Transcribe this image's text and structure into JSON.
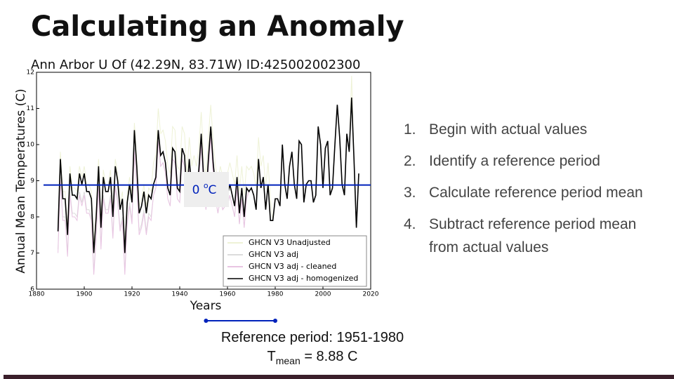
{
  "title": "Calculating an Anomaly",
  "chart_data": {
    "type": "line",
    "title": "Ann Arbor U Of (42.29N, 83.71W) ID:425002002300",
    "x_label": "Years",
    "y_label": "Annual Mean Temperatures (C)",
    "xlim": [
      1880,
      2020
    ],
    "xticks": [
      1880,
      1900,
      1920,
      1940,
      1960,
      1980,
      2000,
      2020
    ],
    "ylim": [
      6,
      12
    ],
    "yticks": [
      6,
      7,
      8,
      9,
      10,
      11,
      12
    ],
    "x": [
      1889,
      1890,
      1891,
      1892,
      1893,
      1894,
      1895,
      1896,
      1897,
      1898,
      1899,
      1900,
      1901,
      1902,
      1903,
      1904,
      1905,
      1906,
      1907,
      1908,
      1909,
      1910,
      1911,
      1912,
      1913,
      1914,
      1915,
      1916,
      1917,
      1918,
      1919,
      1920,
      1921,
      1922,
      1923,
      1924,
      1925,
      1926,
      1927,
      1928,
      1929,
      1930,
      1931,
      1932,
      1933,
      1934,
      1935,
      1936,
      1937,
      1938,
      1939,
      1940,
      1941,
      1942,
      1943,
      1944,
      1945,
      1946,
      1947,
      1948,
      1949,
      1950,
      1951,
      1952,
      1953,
      1954,
      1955,
      1956,
      1957,
      1958,
      1959,
      1960,
      1961,
      1962,
      1963,
      1964,
      1965,
      1966,
      1967,
      1968,
      1969,
      1970,
      1971,
      1972,
      1973,
      1974,
      1975,
      1976,
      1977,
      1978,
      1979,
      1980,
      1981,
      1982,
      1983,
      1984,
      1985,
      1986,
      1987,
      1988,
      1989,
      1990,
      1991,
      1992,
      1993,
      1994,
      1995,
      1996,
      1997,
      1998,
      1999,
      2000,
      2001,
      2002,
      2003,
      2004,
      2005,
      2006,
      2007,
      2008,
      2009,
      2010,
      2011,
      2012,
      2013,
      2014,
      2015
    ],
    "series": [
      {
        "name": "GHCN V3 Unadjusted",
        "color": "#eef2d6",
        "width": 1,
        "values": [
          7.8,
          9.8,
          8.7,
          8.7,
          7.7,
          9.4,
          8.8,
          8.8,
          8.7,
          9.4,
          9.1,
          9.4,
          8.9,
          8.9,
          8.7,
          7.2,
          8.2,
          9.6,
          7.9,
          9.3,
          8.9,
          8.9,
          9.3,
          8.2,
          9.6,
          9.2,
          8.4,
          8.7,
          7.2,
          8.6,
          9.1,
          8.6,
          10.6,
          9.6,
          8.3,
          8.5,
          8.9,
          8.3,
          8.8,
          8.7,
          9.5,
          9.7,
          11.0,
          10.3,
          10.4,
          10.1,
          9.4,
          9.2,
          10.5,
          10.4,
          9.4,
          9.3,
          10.5,
          10.3,
          9.2,
          10.2,
          9.4,
          9.7,
          9.4,
          9.9,
          10.9,
          9.7,
          9.1,
          10.2,
          11.1,
          10.1,
          9.4,
          9.0,
          9.4,
          9.1,
          9.2,
          9.2,
          9.5,
          9.2,
          8.9,
          9.7,
          8.7,
          9.4,
          8.6,
          9.4,
          9.3,
          9.4,
          9.2,
          8.8,
          10.2,
          9.4,
          9.7,
          8.8,
          9.5,
          8.5,
          7.9,
          8.5,
          8.5,
          8.3,
          10.0,
          8.9,
          8.5,
          9.4,
          9.8,
          8.9,
          8.5,
          10.1,
          10.0,
          8.4,
          8.9,
          9.0,
          9.0,
          8.4,
          8.6,
          10.5,
          10.0,
          8.8,
          9.9,
          10.1,
          8.6,
          8.8,
          10.0,
          11.1,
          10.2,
          8.9,
          8.6,
          10.3,
          9.8,
          11.9,
          9.6,
          7.7,
          9.2
        ]
      },
      {
        "name": "GHCN V3 adj",
        "color": "#dcdcdc",
        "width": 1,
        "values": [
          7.1,
          9.1,
          8.0,
          8.0,
          7.0,
          8.7,
          8.1,
          8.1,
          8.0,
          8.7,
          8.4,
          8.7,
          8.2,
          8.2,
          8.0,
          6.5,
          7.5,
          8.9,
          7.2,
          8.6,
          8.2,
          8.2,
          8.6,
          7.5,
          8.9,
          8.5,
          7.7,
          8.0,
          6.5,
          7.9,
          8.4,
          7.9,
          9.9,
          8.9,
          7.6,
          7.8,
          8.2,
          7.6,
          8.1,
          8.0,
          8.6,
          8.8,
          10.1,
          9.4,
          9.5,
          9.2,
          8.5,
          8.3,
          9.6,
          9.5,
          8.5,
          8.4,
          9.6,
          9.4,
          8.3,
          9.3,
          8.5,
          8.8,
          8.5,
          9.0,
          10.0,
          8.8,
          8.2,
          9.3,
          10.2,
          9.2,
          8.5,
          8.1,
          8.5,
          8.2,
          8.3,
          8.3,
          8.6,
          8.3,
          8.0,
          8.8,
          7.8,
          8.5,
          7.7,
          8.5,
          8.7,
          8.8,
          8.6,
          8.2,
          9.6,
          8.8,
          9.1,
          8.2,
          8.9,
          7.9,
          7.9,
          8.5,
          8.5,
          8.3,
          10.0,
          8.9,
          8.5,
          9.4,
          9.8,
          8.9,
          8.5,
          10.1,
          10.0,
          8.4,
          8.9,
          9.0,
          9.0,
          8.4,
          8.6,
          10.5,
          10.0,
          8.8,
          9.9,
          10.1,
          8.6,
          8.8,
          10.0,
          11.1,
          10.2,
          8.9,
          8.6,
          10.3,
          9.8,
          11.3,
          9.6,
          7.7,
          9.2
        ]
      },
      {
        "name": "GHCN V3 adj - cleaned",
        "color": "#e8c4e2",
        "width": 1,
        "values": [
          7.0,
          9.0,
          7.9,
          7.9,
          6.9,
          8.6,
          8.0,
          8.0,
          7.9,
          8.6,
          8.3,
          8.6,
          8.1,
          8.1,
          7.9,
          6.4,
          7.4,
          8.8,
          7.1,
          8.5,
          8.1,
          8.1,
          8.5,
          7.4,
          8.8,
          8.4,
          7.6,
          7.9,
          6.4,
          7.8,
          8.3,
          7.8,
          9.8,
          8.8,
          7.5,
          7.7,
          8.1,
          7.5,
          8.0,
          7.9,
          8.6,
          8.8,
          10.1,
          9.4,
          9.5,
          9.2,
          8.5,
          8.3,
          9.6,
          9.5,
          8.5,
          8.4,
          9.6,
          9.4,
          8.3,
          9.3,
          8.5,
          8.8,
          8.5,
          9.0,
          10.0,
          8.8,
          8.2,
          9.3,
          10.2,
          9.2,
          8.5,
          8.1,
          8.5,
          8.2,
          8.3,
          8.3,
          8.6,
          8.3,
          8.0,
          8.8,
          7.8,
          8.5,
          7.7,
          8.5,
          8.7,
          8.8,
          8.6,
          8.2,
          9.6,
          8.8,
          9.1,
          8.2,
          8.9,
          7.9,
          7.9,
          8.5,
          8.5,
          8.3,
          10.0,
          8.9,
          8.5,
          9.4,
          9.8,
          8.9,
          8.5,
          10.1,
          10.0,
          8.4,
          8.9,
          9.0,
          9.0,
          8.4,
          8.6,
          10.5,
          10.0,
          8.8,
          9.9,
          10.1,
          8.6,
          8.8,
          10.0,
          11.1,
          10.2,
          8.9,
          8.6,
          10.3,
          9.8,
          11.3,
          9.6,
          7.7,
          9.2
        ]
      },
      {
        "name": "GHCN V3 adj - homogenized",
        "color": "#000000",
        "width": 1.6,
        "values": [
          7.6,
          9.6,
          8.5,
          8.5,
          7.5,
          9.2,
          8.6,
          8.6,
          8.5,
          9.2,
          8.9,
          9.2,
          8.7,
          8.7,
          8.5,
          7.0,
          8.0,
          9.4,
          7.7,
          9.1,
          8.7,
          8.7,
          9.1,
          8.0,
          9.4,
          9.0,
          8.2,
          8.5,
          7.0,
          8.4,
          8.9,
          8.4,
          10.4,
          9.4,
          8.1,
          8.3,
          8.7,
          8.1,
          8.6,
          8.5,
          8.9,
          9.1,
          10.4,
          9.7,
          9.8,
          9.5,
          8.8,
          8.6,
          9.9,
          9.8,
          8.8,
          8.7,
          9.9,
          9.7,
          8.6,
          9.6,
          8.8,
          9.1,
          8.8,
          9.3,
          10.3,
          9.1,
          8.5,
          9.6,
          10.5,
          9.5,
          8.8,
          8.4,
          8.8,
          8.5,
          8.6,
          8.6,
          8.9,
          8.6,
          8.3,
          9.1,
          8.1,
          8.8,
          8.0,
          8.8,
          8.7,
          8.8,
          8.6,
          8.2,
          9.6,
          8.8,
          9.1,
          8.2,
          8.9,
          7.9,
          7.9,
          8.5,
          8.5,
          8.3,
          10.0,
          8.9,
          8.5,
          9.4,
          9.8,
          8.9,
          8.5,
          10.1,
          10.0,
          8.4,
          8.9,
          9.0,
          9.0,
          8.4,
          8.6,
          10.5,
          10.0,
          8.8,
          9.9,
          10.1,
          8.6,
          8.8,
          10.0,
          11.1,
          10.2,
          8.9,
          8.6,
          10.3,
          9.8,
          11.3,
          9.6,
          7.7,
          9.2
        ]
      }
    ],
    "legend": "lower right",
    "reference_mean": 8.88,
    "reference_line_color": "#0022bb",
    "reference_line_label": [
      "0 ",
      "o",
      "C"
    ],
    "reference_start": 1951,
    "reference_end": 1980
  },
  "steps": [
    {
      "number": "1.",
      "text": "Begin with actual values"
    },
    {
      "number": "2.",
      "text": "Identify a reference period"
    },
    {
      "number": "3.",
      "text": "Calculate reference period mean"
    },
    {
      "number": "4.",
      "text": "Subtract reference period mean from actual values"
    }
  ],
  "reference_text": "Reference period: 1951-1980",
  "mean_text": {
    "symbol": "T",
    "subscript": "mean",
    "rest": " = 8.88 C"
  }
}
